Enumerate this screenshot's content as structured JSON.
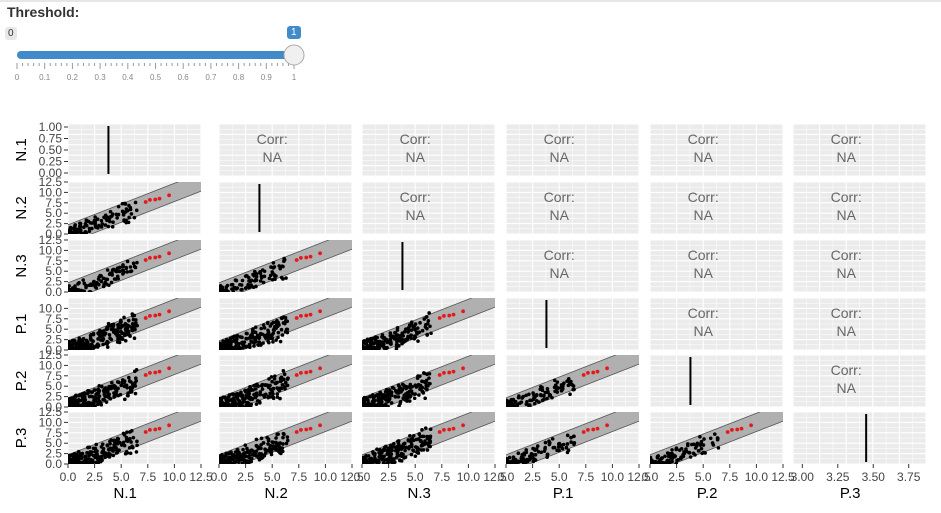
{
  "slider": {
    "label": "Threshold:",
    "min_label": "0",
    "value_label": "1",
    "value": 1,
    "min": 0,
    "max": 1,
    "ticks": [
      "0",
      "0.1",
      "0.2",
      "0.3",
      "0.4",
      "0.5",
      "0.6",
      "0.7",
      "0.8",
      "0.9",
      "1"
    ],
    "bar_color": "#428bca"
  },
  "chart_data": {
    "type": "scatter",
    "variables": [
      "N.1",
      "N.2",
      "N.3",
      "P.1",
      "P.2",
      "P.3"
    ],
    "upper_text": {
      "line1": "Corr:",
      "line2": "NA"
    },
    "y_ticks_rows": [
      [
        "1.00",
        "0.75",
        "0.50",
        "0.25",
        "0.00"
      ],
      [
        "12.5",
        "10.0",
        "7.5",
        "5.0",
        "2.5",
        "0.0"
      ],
      [
        "12.5",
        "10.0",
        "7.5",
        "5.0",
        "2.5",
        "0.0"
      ],
      [
        "10.0",
        "7.5",
        "5.0",
        "2.5",
        "0.0"
      ],
      [
        "12.5",
        "10.0",
        "7.5",
        "5.0",
        "2.5",
        "0.0"
      ],
      [
        "12.5",
        "10.0",
        "7.5",
        "5.0",
        "2.5",
        "0.0"
      ]
    ],
    "x_ticks_cols": [
      [
        "0.0",
        "2.5",
        "5.0",
        "7.5",
        "10.0",
        "12.5"
      ],
      [
        "0.0",
        "2.5",
        "5.0",
        "7.5",
        "10.0",
        "12.5"
      ],
      [
        "0.0",
        "2.5",
        "5.0",
        "7.5",
        "10.0",
        "12.5"
      ],
      [
        "0.0",
        "2.5",
        "5.0",
        "7.5",
        "10.0",
        "12.5"
      ],
      [
        "0.0",
        "2.5",
        "5.0",
        "7.5",
        "10.0",
        "12.5"
      ],
      [
        "3.00",
        "3.25",
        "3.50",
        "3.75"
      ]
    ],
    "axis_ranges": {
      "x": [
        0,
        12.5
      ],
      "y": [
        0,
        12.5
      ],
      "diag_x_last": [
        3.0,
        3.75
      ]
    },
    "highlight_points": [
      [
        7.3,
        7.7
      ],
      [
        7.7,
        8.2
      ],
      [
        8.2,
        8.3
      ],
      [
        8.6,
        8.5
      ],
      [
        9.5,
        9.3
      ]
    ],
    "point_color": "#000000",
    "highlight_color": "#e31a1c",
    "band_color": "#b0b0b0",
    "panel_bg": "#ebebeb",
    "grid": true
  }
}
